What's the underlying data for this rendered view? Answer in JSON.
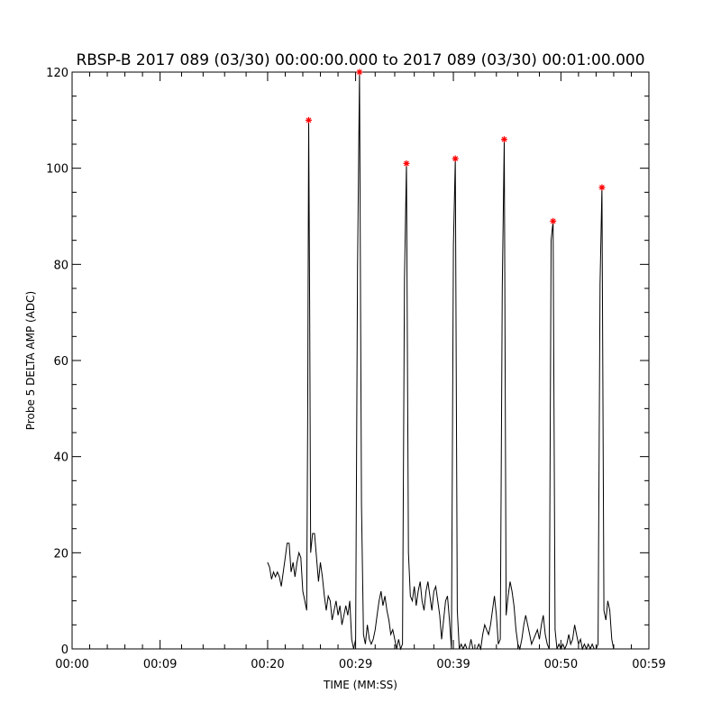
{
  "chart_data": {
    "type": "line",
    "title": "RBSP-B 2017 089 (03/30) 00:00:00.000 to 2017 089 (03/30) 00:01:00.000",
    "xlabel": "TIME (MM:SS)",
    "ylabel": "Probe 5 DELTA AMP (ADC)",
    "xlim": [
      0,
      59
    ],
    "ylim": [
      0,
      120
    ],
    "x_ticks": [
      {
        "value": 0,
        "label": "00:00"
      },
      {
        "value": 9,
        "label": "00:09"
      },
      {
        "value": 20,
        "label": "00:20"
      },
      {
        "value": 29,
        "label": "00:29"
      },
      {
        "value": 39,
        "label": "00:39"
      },
      {
        "value": 50,
        "label": "00:50"
      },
      {
        "value": 59,
        "label": "00:59"
      }
    ],
    "y_ticks": [
      0,
      20,
      40,
      60,
      80,
      100,
      120
    ],
    "grid": false,
    "series": [
      {
        "color": "#000000",
        "points": [
          [
            20.0,
            18
          ],
          [
            20.2,
            17
          ],
          [
            20.4,
            14.5
          ],
          [
            20.6,
            16
          ],
          [
            20.8,
            15
          ],
          [
            21.0,
            16
          ],
          [
            21.2,
            15
          ],
          [
            21.4,
            13
          ],
          [
            21.6,
            16
          ],
          [
            21.8,
            19
          ],
          [
            22.0,
            22
          ],
          [
            22.2,
            22
          ],
          [
            22.4,
            16
          ],
          [
            22.6,
            18
          ],
          [
            22.8,
            15
          ],
          [
            23.0,
            18
          ],
          [
            23.2,
            20
          ],
          [
            23.4,
            19
          ],
          [
            23.6,
            12
          ],
          [
            23.8,
            10
          ],
          [
            24.0,
            8
          ],
          [
            24.1,
            48
          ],
          [
            24.2,
            110
          ],
          [
            24.3,
            71
          ],
          [
            24.4,
            20
          ],
          [
            24.6,
            24
          ],
          [
            24.8,
            24
          ],
          [
            25.0,
            19
          ],
          [
            25.2,
            14
          ],
          [
            25.4,
            18
          ],
          [
            25.6,
            15
          ],
          [
            25.8,
            11
          ],
          [
            26.0,
            8
          ],
          [
            26.2,
            11
          ],
          [
            26.4,
            10
          ],
          [
            26.6,
            6
          ],
          [
            26.8,
            8
          ],
          [
            27.0,
            10
          ],
          [
            27.2,
            7
          ],
          [
            27.4,
            9
          ],
          [
            27.6,
            5
          ],
          [
            27.8,
            7
          ],
          [
            28.0,
            9
          ],
          [
            28.2,
            7
          ],
          [
            28.4,
            10
          ],
          [
            28.6,
            2
          ],
          [
            28.8,
            0
          ],
          [
            29.0,
            2
          ],
          [
            29.2,
            79
          ],
          [
            29.4,
            120
          ],
          [
            29.6,
            30
          ],
          [
            29.8,
            3
          ],
          [
            30.0,
            1
          ],
          [
            30.2,
            5
          ],
          [
            30.4,
            2
          ],
          [
            30.6,
            1
          ],
          [
            30.8,
            2
          ],
          [
            31.0,
            4
          ],
          [
            31.2,
            7
          ],
          [
            31.4,
            10
          ],
          [
            31.6,
            12
          ],
          [
            31.8,
            9
          ],
          [
            32.0,
            11
          ],
          [
            32.2,
            8
          ],
          [
            32.4,
            6
          ],
          [
            32.6,
            3
          ],
          [
            32.8,
            4
          ],
          [
            33.0,
            2
          ],
          [
            33.2,
            0
          ],
          [
            33.4,
            2
          ],
          [
            33.6,
            0
          ],
          [
            33.8,
            1
          ],
          [
            34.0,
            77
          ],
          [
            34.2,
            101
          ],
          [
            34.4,
            20
          ],
          [
            34.6,
            11
          ],
          [
            34.8,
            10
          ],
          [
            35.0,
            13
          ],
          [
            35.2,
            9
          ],
          [
            35.4,
            12
          ],
          [
            35.6,
            14
          ],
          [
            35.8,
            10
          ],
          [
            36.0,
            8
          ],
          [
            36.2,
            12
          ],
          [
            36.4,
            14
          ],
          [
            36.6,
            11
          ],
          [
            36.8,
            8
          ],
          [
            37.0,
            12
          ],
          [
            37.2,
            13
          ],
          [
            37.4,
            10
          ],
          [
            37.6,
            7
          ],
          [
            37.8,
            2
          ],
          [
            38.0,
            6
          ],
          [
            38.2,
            10
          ],
          [
            38.4,
            11
          ],
          [
            38.6,
            6
          ],
          [
            38.8,
            0
          ],
          [
            39.0,
            84
          ],
          [
            39.2,
            102
          ],
          [
            39.4,
            8
          ],
          [
            39.6,
            0
          ],
          [
            39.8,
            1
          ],
          [
            40.0,
            0
          ],
          [
            40.2,
            1
          ],
          [
            40.4,
            0
          ],
          [
            40.6,
            0
          ],
          [
            40.8,
            2
          ],
          [
            41.0,
            0
          ],
          [
            41.2,
            0
          ],
          [
            41.4,
            0
          ],
          [
            41.6,
            1
          ],
          [
            41.8,
            0
          ],
          [
            42.0,
            3
          ],
          [
            42.2,
            5
          ],
          [
            42.4,
            4
          ],
          [
            42.6,
            3
          ],
          [
            42.8,
            5
          ],
          [
            43.0,
            8
          ],
          [
            43.2,
            11
          ],
          [
            43.4,
            7
          ],
          [
            43.6,
            1
          ],
          [
            43.8,
            2
          ],
          [
            44.0,
            75
          ],
          [
            44.2,
            106
          ],
          [
            44.4,
            7
          ],
          [
            44.6,
            11
          ],
          [
            44.8,
            14
          ],
          [
            45.0,
            12
          ],
          [
            45.2,
            9
          ],
          [
            45.4,
            4
          ],
          [
            45.6,
            1
          ],
          [
            45.8,
            0
          ],
          [
            46.0,
            2
          ],
          [
            46.2,
            5
          ],
          [
            46.4,
            7
          ],
          [
            46.6,
            5
          ],
          [
            46.8,
            3
          ],
          [
            47.0,
            1
          ],
          [
            47.2,
            2
          ],
          [
            47.4,
            3
          ],
          [
            47.6,
            4
          ],
          [
            47.8,
            2
          ],
          [
            48.0,
            5
          ],
          [
            48.2,
            7
          ],
          [
            48.4,
            3
          ],
          [
            48.6,
            1
          ],
          [
            48.8,
            0
          ],
          [
            49.0,
            85
          ],
          [
            49.2,
            89
          ],
          [
            49.4,
            4
          ],
          [
            49.6,
            0
          ],
          [
            49.8,
            1
          ],
          [
            50.0,
            0
          ],
          [
            50.2,
            1
          ],
          [
            50.4,
            0
          ],
          [
            50.6,
            1
          ],
          [
            50.8,
            3
          ],
          [
            51.0,
            1
          ],
          [
            51.2,
            2
          ],
          [
            51.4,
            5
          ],
          [
            51.6,
            3
          ],
          [
            51.8,
            1
          ],
          [
            52.0,
            2
          ],
          [
            52.2,
            0
          ],
          [
            52.4,
            1
          ],
          [
            52.6,
            0
          ],
          [
            52.8,
            1
          ],
          [
            53.0,
            0
          ],
          [
            53.2,
            1
          ],
          [
            53.4,
            0
          ],
          [
            53.6,
            0
          ],
          [
            53.8,
            1
          ],
          [
            54.0,
            76
          ],
          [
            54.2,
            96
          ],
          [
            54.4,
            8
          ],
          [
            54.6,
            6
          ],
          [
            54.8,
            10
          ],
          [
            55.0,
            8
          ],
          [
            55.2,
            2
          ],
          [
            55.4,
            0
          ]
        ]
      }
    ],
    "peak_markers": {
      "color": "#ff0000",
      "symbol": "*",
      "points": [
        [
          24.2,
          110
        ],
        [
          29.4,
          120
        ],
        [
          34.2,
          101
        ],
        [
          39.2,
          102
        ],
        [
          44.2,
          106
        ],
        [
          49.2,
          89
        ],
        [
          54.2,
          96
        ]
      ]
    }
  }
}
